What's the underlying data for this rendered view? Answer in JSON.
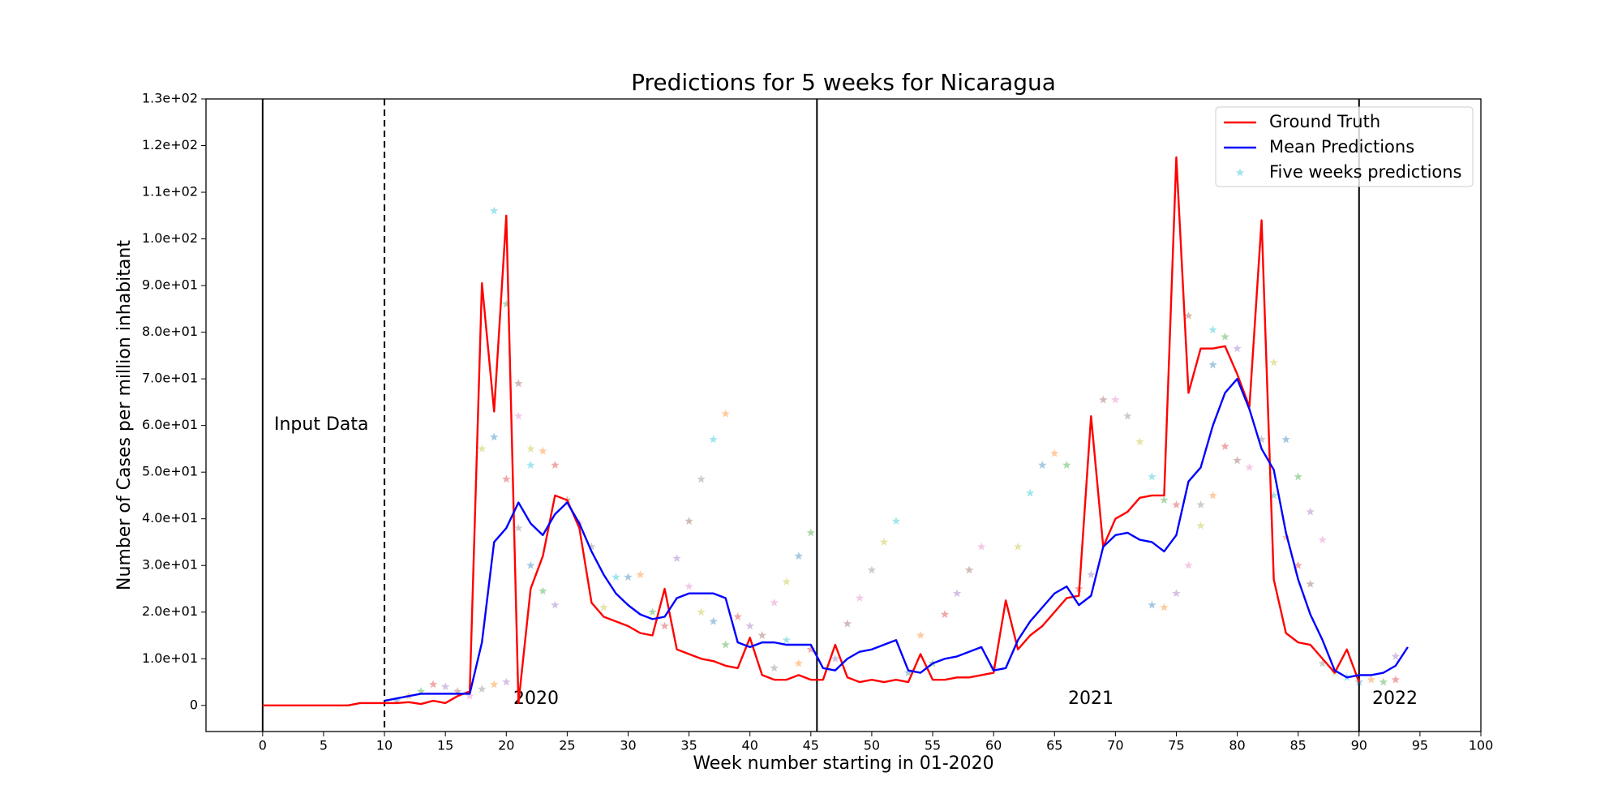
{
  "chart_data": {
    "type": "line",
    "title": "Predictions for 5 weeks for Nicaragua",
    "x_label": "Week number starting in 01-2020",
    "y_label": "Number of Cases per million inhabitant",
    "xlim": [
      -4.65,
      100
    ],
    "ylim": [
      -5.6,
      130
    ],
    "xticks": [
      0,
      5,
      10,
      15,
      20,
      25,
      30,
      35,
      40,
      45,
      50,
      55,
      60,
      65,
      70,
      75,
      80,
      85,
      90,
      95,
      100
    ],
    "yticks": [
      0,
      {
        "value": 10,
        "label": "1.0e+01"
      },
      {
        "value": 20,
        "label": "2.0e+01"
      },
      {
        "value": 30,
        "label": "3.0e+01"
      },
      {
        "value": 40,
        "label": "4.0e+01"
      },
      {
        "value": 50,
        "label": "5.0e+01"
      },
      {
        "value": 60,
        "label": "6.0e+01"
      },
      {
        "value": 70,
        "label": "7.0e+01"
      },
      {
        "value": 80,
        "label": "8.0e+01"
      },
      {
        "value": 90,
        "label": "9.0e+01"
      },
      {
        "value": 100,
        "label": "1.0e+02"
      },
      {
        "value": 110,
        "label": "1.1e+02"
      },
      {
        "value": 120,
        "label": "1.2e+02"
      },
      {
        "value": 130,
        "label": "1.3e+02"
      }
    ],
    "legend": "upper right",
    "vlines": [
      {
        "x": 0,
        "style": "solid"
      },
      {
        "x": 10,
        "style": "dashed"
      },
      {
        "x": 45.5,
        "style": "solid"
      },
      {
        "x": 90,
        "style": "solid"
      }
    ],
    "annotations": [
      "Input Data",
      "2020",
      "2021",
      "2022"
    ],
    "series": [
      {
        "name": "Ground Truth",
        "type": "line",
        "color": "#ff0000",
        "x": [
          0,
          1,
          2,
          3,
          4,
          5,
          6,
          7,
          8,
          9,
          10,
          11,
          12,
          13,
          14,
          15,
          16,
          17,
          18,
          19,
          20,
          21,
          22,
          23,
          24,
          25,
          26,
          27,
          28,
          29,
          30,
          31,
          32,
          33,
          34,
          35,
          36,
          37,
          38,
          39,
          40,
          41,
          42,
          43,
          44,
          45,
          46,
          47,
          48,
          49,
          50,
          51,
          52,
          53,
          54,
          55,
          56,
          57,
          58,
          59,
          60,
          61,
          62,
          63,
          64,
          65,
          66,
          67,
          68,
          69,
          70,
          71,
          72,
          73,
          74,
          75,
          76,
          77,
          78,
          79,
          80,
          81,
          82,
          83,
          84,
          85,
          86,
          87,
          88,
          89,
          90
        ],
        "values": [
          0,
          0,
          0,
          0,
          0,
          0,
          0,
          0,
          0.5,
          0.5,
          0.5,
          0.5,
          0.7,
          0.3,
          1,
          0.5,
          2,
          3,
          90.5,
          63,
          105,
          0.5,
          25,
          32,
          45,
          44,
          38,
          22,
          19,
          18,
          17,
          15.5,
          15,
          25,
          12,
          11,
          10,
          9.5,
          8.5,
          8,
          14.5,
          6.5,
          5.5,
          5.5,
          6.5,
          5.5,
          5.5,
          13,
          6,
          5,
          5.5,
          5,
          5.5,
          5,
          11,
          5.5,
          5.5,
          6,
          6,
          6.5,
          7,
          22.5,
          12,
          15,
          17,
          20,
          23,
          23.5,
          62,
          34,
          40,
          41.5,
          44.5,
          45,
          45,
          117.5,
          67,
          76.5,
          76.5,
          77,
          71,
          64,
          104,
          27,
          15.5,
          13.5,
          13,
          10,
          7,
          12,
          5
        ]
      },
      {
        "name": "Mean Predictions",
        "type": "line",
        "color": "#0000ff",
        "x": [
          10,
          11,
          12,
          13,
          14,
          15,
          16,
          17,
          18,
          19,
          20,
          21,
          22,
          23,
          24,
          25,
          26,
          27,
          28,
          29,
          30,
          31,
          32,
          33,
          34,
          35,
          36,
          37,
          38,
          39,
          40,
          41,
          42,
          43,
          44,
          45,
          46,
          47,
          48,
          49,
          50,
          51,
          52,
          53,
          54,
          55,
          56,
          57,
          58,
          59,
          60,
          61,
          62,
          63,
          64,
          65,
          66,
          67,
          68,
          69,
          70,
          71,
          72,
          73,
          74,
          75,
          76,
          77,
          78,
          79,
          80,
          81,
          82,
          83,
          84,
          85,
          86,
          87,
          88,
          89,
          90,
          91,
          92,
          93,
          94
        ],
        "values": [
          1,
          1.5,
          2,
          2.5,
          2.5,
          2.5,
          2.5,
          2.5,
          13.5,
          35,
          38,
          43.5,
          39,
          36.5,
          41,
          43.5,
          39,
          33,
          28,
          24,
          21.5,
          19.5,
          18.5,
          19,
          23,
          24,
          24,
          24,
          23,
          13.5,
          12.5,
          13.5,
          13.5,
          13,
          13,
          13,
          8,
          7.5,
          10,
          11.5,
          12,
          13,
          14,
          7.5,
          7,
          9,
          10,
          10.5,
          11.5,
          12.5,
          7.5,
          8,
          14,
          18,
          21,
          24,
          25.5,
          21.5,
          23.5,
          34,
          36.5,
          37,
          35.5,
          35,
          33,
          36.5,
          48,
          51,
          60,
          67,
          70,
          63.5,
          55,
          50.5,
          37,
          27,
          19.5,
          14,
          7.5,
          6,
          6.5,
          6.5,
          7,
          8.5,
          12.5
        ]
      },
      {
        "name": "Five weeks predictions",
        "type": "scatter",
        "color": "#17becf",
        "colors": [
          "#1f77b4",
          "#ff7f0e",
          "#2ca02c",
          "#d62728",
          "#9467bd",
          "#8c564b",
          "#e377c2",
          "#7f7f7f",
          "#bcbd22",
          "#17becf"
        ],
        "x": [
          11,
          12,
          13,
          14,
          15,
          16,
          17,
          18,
          18,
          19,
          19,
          19,
          20,
          20,
          20,
          21,
          21,
          21,
          22,
          22,
          22,
          23,
          23,
          24,
          24,
          25,
          26,
          27,
          28,
          29,
          30,
          31,
          32,
          33,
          34,
          35,
          35,
          36,
          36,
          37,
          37,
          38,
          38,
          39,
          40,
          41,
          42,
          42,
          43,
          43,
          44,
          44,
          45,
          45,
          47,
          48,
          49,
          50,
          51,
          52,
          53,
          54,
          55,
          56,
          57,
          58,
          59,
          60,
          62,
          63,
          64,
          65,
          66,
          67,
          68,
          69,
          70,
          71,
          72,
          73,
          73,
          74,
          74,
          75,
          75,
          76,
          76,
          77,
          77,
          78,
          78,
          78,
          79,
          79,
          80,
          80,
          81,
          82,
          83,
          83,
          84,
          84,
          85,
          85,
          86,
          86,
          87,
          87,
          88,
          89,
          90,
          91,
          92,
          93,
          93
        ],
        "values": [
          1,
          2,
          3,
          4.5,
          4,
          3,
          2,
          3.5,
          55,
          106,
          57.5,
          4.5,
          86,
          48.5,
          5,
          69,
          62,
          38,
          55,
          51.5,
          30,
          54.5,
          24.5,
          51.5,
          21.5,
          44,
          39,
          34,
          21,
          27.5,
          27.5,
          28,
          20,
          17,
          31.5,
          39.5,
          25.5,
          48.5,
          20,
          57,
          18,
          62.5,
          13,
          19,
          17,
          15,
          22,
          8,
          26.5,
          14,
          32,
          9,
          37,
          12,
          10,
          17.5,
          23,
          29,
          35,
          39.5,
          7,
          15,
          9,
          19.5,
          24,
          29,
          34,
          8,
          34,
          45.5,
          51.5,
          54,
          51.5,
          25,
          28,
          65.5,
          65.5,
          62,
          56.5,
          49,
          21.5,
          21,
          44,
          43,
          24,
          83.5,
          30,
          43,
          38.5,
          80.5,
          73,
          45,
          79,
          55.5,
          76.5,
          52.5,
          51,
          57,
          73.5,
          45,
          57,
          36,
          49,
          30,
          41.5,
          26,
          35.5,
          9,
          7,
          6,
          5,
          5.5,
          5,
          5.5,
          10.5
        ]
      }
    ]
  }
}
